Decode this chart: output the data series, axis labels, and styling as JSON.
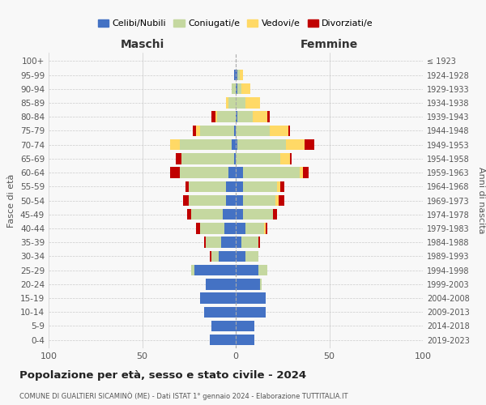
{
  "age_groups": [
    "0-4",
    "5-9",
    "10-14",
    "15-19",
    "20-24",
    "25-29",
    "30-34",
    "35-39",
    "40-44",
    "45-49",
    "50-54",
    "55-59",
    "60-64",
    "65-69",
    "70-74",
    "75-79",
    "80-84",
    "85-89",
    "90-94",
    "95-99",
    "100+"
  ],
  "birth_years": [
    "2019-2023",
    "2014-2018",
    "2009-2013",
    "2004-2008",
    "1999-2003",
    "1994-1998",
    "1989-1993",
    "1984-1988",
    "1979-1983",
    "1974-1978",
    "1969-1973",
    "1964-1968",
    "1959-1963",
    "1954-1958",
    "1949-1953",
    "1944-1948",
    "1939-1943",
    "1934-1938",
    "1929-1933",
    "1924-1928",
    "≤ 1923"
  ],
  "male": {
    "celibi": [
      14,
      13,
      17,
      19,
      16,
      22,
      9,
      8,
      6,
      7,
      5,
      5,
      4,
      1,
      2,
      1,
      0,
      0,
      0,
      1,
      0
    ],
    "coniugati": [
      0,
      0,
      0,
      0,
      0,
      2,
      4,
      8,
      13,
      17,
      20,
      20,
      26,
      28,
      28,
      18,
      10,
      4,
      2,
      0,
      0
    ],
    "vedovi": [
      0,
      0,
      0,
      0,
      0,
      0,
      0,
      0,
      0,
      0,
      0,
      0,
      0,
      0,
      5,
      2,
      1,
      1,
      0,
      0,
      0
    ],
    "divorziati": [
      0,
      0,
      0,
      0,
      0,
      0,
      1,
      1,
      2,
      2,
      3,
      2,
      5,
      3,
      0,
      2,
      2,
      0,
      0,
      0,
      0
    ]
  },
  "female": {
    "nubili": [
      10,
      10,
      16,
      16,
      13,
      12,
      5,
      3,
      5,
      4,
      4,
      4,
      4,
      0,
      1,
      0,
      1,
      0,
      1,
      1,
      0
    ],
    "coniugate": [
      0,
      0,
      0,
      0,
      1,
      5,
      7,
      9,
      10,
      16,
      17,
      18,
      30,
      24,
      26,
      18,
      8,
      5,
      2,
      1,
      0
    ],
    "vedove": [
      0,
      0,
      0,
      0,
      0,
      0,
      0,
      0,
      1,
      0,
      2,
      2,
      2,
      5,
      10,
      10,
      8,
      8,
      5,
      2,
      0
    ],
    "divorziate": [
      0,
      0,
      0,
      0,
      0,
      0,
      0,
      1,
      1,
      2,
      3,
      2,
      3,
      1,
      5,
      1,
      1,
      0,
      0,
      0,
      0
    ]
  },
  "colors": {
    "celibi": "#4472c4",
    "coniugati": "#c5d8a0",
    "vedovi": "#ffd966",
    "divorziati": "#c00000"
  },
  "title": "Popolazione per età, sesso e stato civile - 2024",
  "subtitle": "COMUNE DI GUALTIERI SICAMINÒ (ME) - Dati ISTAT 1° gennaio 2024 - Elaborazione TUTTITALIA.IT",
  "xlabel_left": "Maschi",
  "xlabel_right": "Femmine",
  "ylabel_left": "Fasce di età",
  "ylabel_right": "Anni di nascita",
  "legend_labels": [
    "Celibi/Nubili",
    "Coniugati/e",
    "Vedovi/e",
    "Divorziati/e"
  ],
  "xlim": 100,
  "background": "#f8f8f8",
  "grid_color": "#cccccc"
}
